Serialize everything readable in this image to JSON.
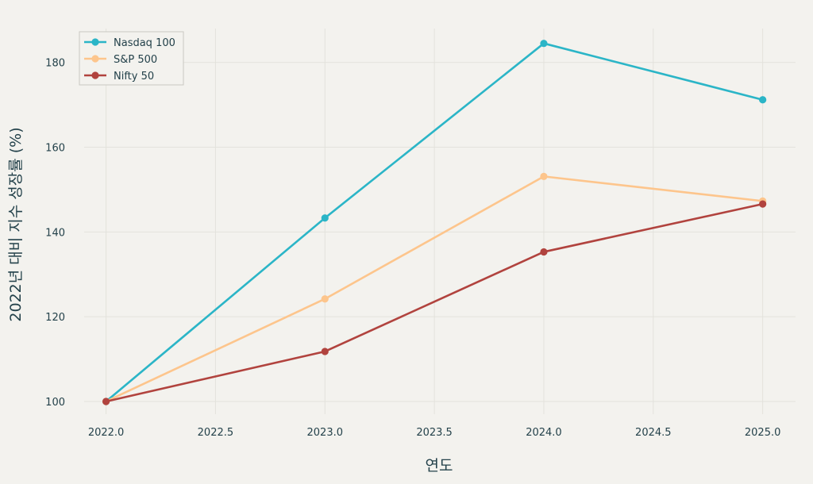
{
  "chart_data": {
    "type": "line",
    "title": "",
    "xlabel": "연도",
    "ylabel": "2022년 대비 지수 성장률 (%)",
    "x": [
      2022,
      2023,
      2024,
      2025
    ],
    "xlim": [
      2021.9,
      2025.15
    ],
    "ylim": [
      97,
      188
    ],
    "xticks": [
      2022.0,
      2022.5,
      2023.0,
      2023.5,
      2024.0,
      2024.5,
      2025.0
    ],
    "xtick_labels": [
      "2022.0",
      "2022.5",
      "2023.0",
      "2023.5",
      "2024.0",
      "2024.5",
      "2025.0"
    ],
    "yticks": [
      100,
      120,
      140,
      160,
      180
    ],
    "ytick_labels": [
      "100",
      "120",
      "140",
      "160",
      "180"
    ],
    "grid": true,
    "legend_position": "top-left",
    "series": [
      {
        "name": "Nasdaq 100",
        "color": "#2bb5c7",
        "values": [
          100,
          143.3,
          184.5,
          171.2
        ]
      },
      {
        "name": "S&P 500",
        "color": "#fdc58c",
        "values": [
          100,
          124.2,
          153.1,
          147.3
        ]
      },
      {
        "name": "Nifty 50",
        "color": "#b1433e",
        "values": [
          100,
          111.8,
          135.3,
          146.6
        ]
      }
    ]
  }
}
